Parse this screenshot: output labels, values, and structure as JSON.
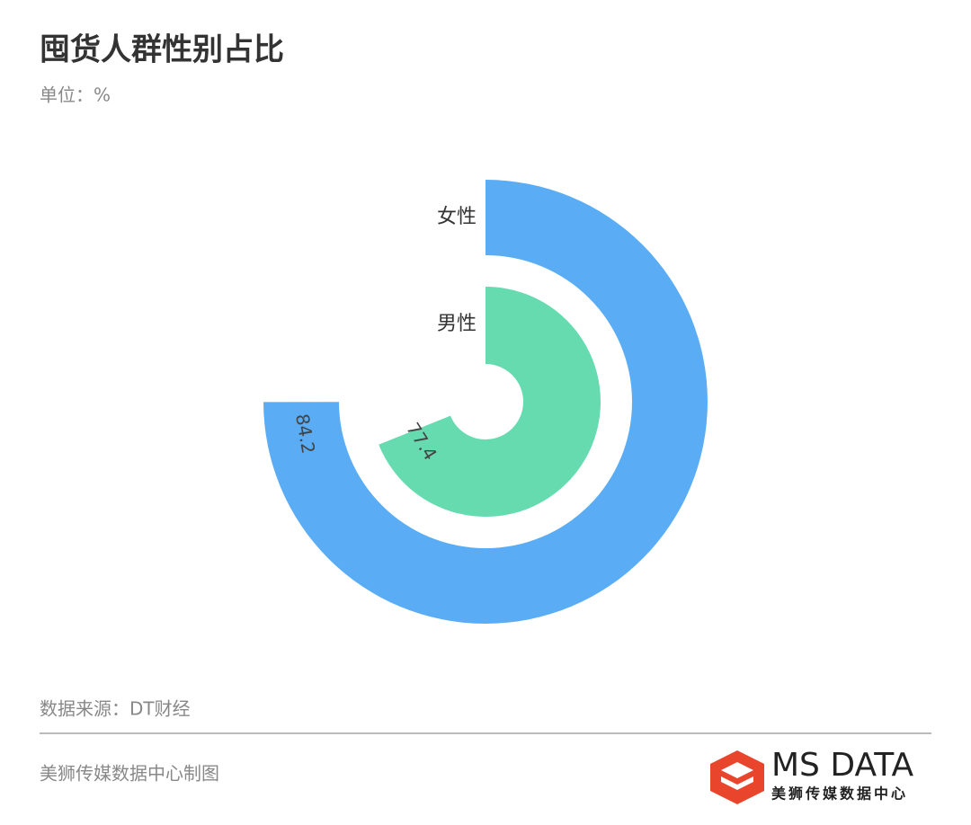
{
  "chart_data": {
    "type": "radial-bar",
    "title": "囤货人群性别占比",
    "subtitle": "单位：%",
    "categories": [
      "女性",
      "男性"
    ],
    "values": [
      84.2,
      77.4
    ],
    "colors": [
      "#5aadf5",
      "#66dbb0"
    ],
    "xlim": [
      0,
      112.3
    ],
    "source": "数据来源：DT财经",
    "credit": "美狮传媒数据中心制图",
    "logo_title": "MS DATA",
    "logo_subtitle": "美狮传媒数据中心"
  }
}
